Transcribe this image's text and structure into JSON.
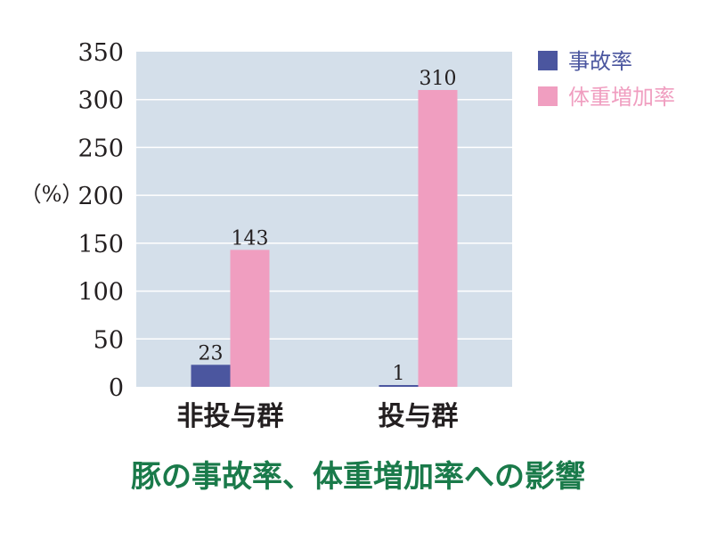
{
  "chart_data": {
    "type": "bar",
    "title": "豚の事故率、体重増加率への影響",
    "ylabel": "（%）",
    "xlabel": "",
    "categories": [
      "非投与群",
      "投与群"
    ],
    "series": [
      {
        "name": "事故率",
        "values": [
          23,
          1
        ],
        "color": "#4b569f"
      },
      {
        "name": "体重増加率",
        "values": [
          143,
          310
        ],
        "color": "#f09ec0"
      }
    ],
    "ylim": [
      0,
      350
    ],
    "yticks": [
      0,
      50,
      100,
      150,
      200,
      250,
      300,
      350
    ],
    "grid": true,
    "legend": "right",
    "plot_background": "#d4dfea",
    "title_color": "#1a7a4a"
  }
}
